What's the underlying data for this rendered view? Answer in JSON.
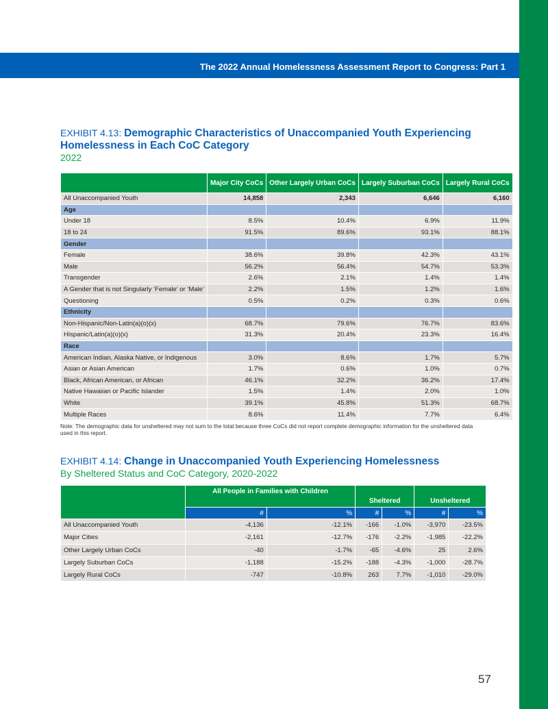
{
  "banner": "The 2022 Annual Homelessness Assessment Report to Congress: Part 1",
  "ex1": {
    "label": "EXHIBIT 4.13: ",
    "title_l1": "Demographic Characteristics of Unaccompanied Youth Experiencing",
    "title_l2": "Homelessness in Each CoC Category",
    "subtitle": "2022",
    "headers": [
      "Major City CoCs",
      "Other Largely Urban CoCs",
      "Largely Suburban CoCs",
      "Largely Rural CoCs"
    ],
    "rows": [
      {
        "label": "All Unaccompanied Youth",
        "values": [
          "14,858",
          "2,343",
          "6,646",
          "6,160"
        ],
        "bold": true
      },
      {
        "label": "Age",
        "section": true
      },
      {
        "label": "Under 18",
        "values": [
          "8.5%",
          "10.4%",
          "6.9%",
          "11.9%"
        ]
      },
      {
        "label": "18 to 24",
        "values": [
          "91.5%",
          "89.6%",
          "93.1%",
          "88.1%"
        ]
      },
      {
        "label": "Gender",
        "section": true
      },
      {
        "label": "Female",
        "values": [
          "38.6%",
          "39.8%",
          "42.3%",
          "43.1%"
        ]
      },
      {
        "label": "Male",
        "values": [
          "56.2%",
          "56.4%",
          "54.7%",
          "53.3%"
        ]
      },
      {
        "label": "Transgender",
        "values": [
          "2.6%",
          "2.1%",
          "1.4%",
          "1.4%"
        ]
      },
      {
        "label": "A Gender that is not Singularly ‘Female’ or ‘Male’",
        "values": [
          "2.2%",
          "1.5%",
          "1.2%",
          "1.6%"
        ]
      },
      {
        "label": "Questioning",
        "values": [
          "0.5%",
          "0.2%",
          "0.3%",
          "0.6%"
        ]
      },
      {
        "label": "Ethnicity",
        "section": true
      },
      {
        "label": "Non-Hispanic/Non-Latin(a)(o)(x)",
        "values": [
          "68.7%",
          "79.6%",
          "76.7%",
          "83.6%"
        ]
      },
      {
        "label": "Hispanic/Latin(a)(o)(x)",
        "values": [
          "31.3%",
          "20.4%",
          "23.3%",
          "16.4%"
        ]
      },
      {
        "label": "Race",
        "section": true
      },
      {
        "label": "American Indian, Alaska Native, or Indigenous",
        "values": [
          "3.0%",
          "8.6%",
          "1.7%",
          "5.7%"
        ]
      },
      {
        "label": "Asian or Asian American",
        "values": [
          "1.7%",
          "0.6%",
          "1.0%",
          "0.7%"
        ]
      },
      {
        "label": "Black, African American, or African",
        "values": [
          "46.1%",
          "32.2%",
          "36.2%",
          "17.4%"
        ]
      },
      {
        "label": "Native Hawaiian or Pacific Islander",
        "values": [
          "1.5%",
          "1.4%",
          "2.0%",
          "1.0%"
        ]
      },
      {
        "label": "White",
        "values": [
          "39.1%",
          "45.8%",
          "51.3%",
          "68.7%"
        ]
      },
      {
        "label": "Multiple Races",
        "values": [
          "8.6%",
          "11.4%",
          "7.7%",
          "6.4%"
        ]
      }
    ],
    "note": "Note: The demographic data for unsheltered may not sum to the total because three CoCs did not report complete demographic information for the unsheltered data used in this report."
  },
  "ex2": {
    "label": "EXHIBIT 4.14: ",
    "title": "Change in Unaccompanied Youth Experiencing Homelessness",
    "subtitle": "By Sheltered Status and CoC Category, 2020-2022",
    "groups": [
      "All People in Families with Children",
      "Sheltered",
      "Unsheltered"
    ],
    "subheaders": [
      "#",
      "%",
      "#",
      "%",
      "#",
      "%"
    ],
    "rows": [
      {
        "label": "All Unaccompanied Youth",
        "values": [
          "-4,136",
          "-12.1%",
          "-166",
          "-1.0%",
          "-3,970",
          "-23.5%"
        ]
      },
      {
        "label": "Major Cities",
        "values": [
          "-2,161",
          "-12.7%",
          "-176",
          "-2.2%",
          "-1,985",
          "-22.2%"
        ]
      },
      {
        "label": "Other Largely Urban CoCs",
        "values": [
          "-40",
          "-1.7%",
          "-65",
          "-4.6%",
          "25",
          "2.6%"
        ]
      },
      {
        "label": "Largely Suburban CoCs",
        "values": [
          "-1,188",
          "-15.2%",
          "-188",
          "-4.3%",
          "-1,000",
          "-28.7%"
        ]
      },
      {
        "label": "Largely Rural CoCs",
        "values": [
          "-747",
          "-10.8%",
          "263",
          "7.7%",
          "-1,010",
          "-29.0%"
        ]
      }
    ]
  },
  "page_number": "57"
}
